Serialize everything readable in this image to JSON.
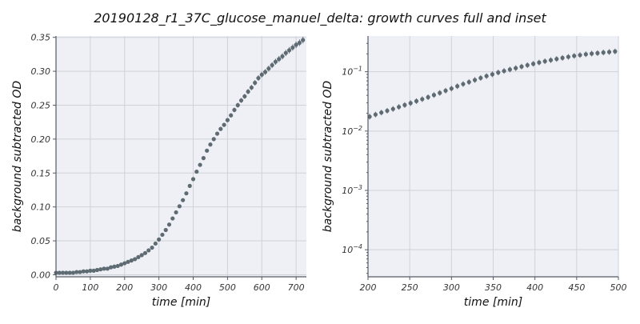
{
  "page": {
    "title": "20190128_r1_37C_glucose_manuel_delta: growth curves full and inset"
  },
  "colors": {
    "marker": "#5f6b73",
    "plot_background": "#eef0f5",
    "grid": "#cfd2d8"
  },
  "chart_data": [
    {
      "type": "scatter",
      "panel": "full",
      "xlabel": "time [min]",
      "ylabel": "background subtracted OD",
      "xlim": [
        0,
        730
      ],
      "ylim": [
        -0.003,
        0.352
      ],
      "yscale": "linear",
      "grid": true,
      "xticks": [
        0,
        100,
        200,
        300,
        400,
        500,
        600,
        700
      ],
      "xtick_labels": [
        "0",
        "100",
        "200",
        "300",
        "400",
        "500",
        "600",
        "700"
      ],
      "yticks": [
        0.0,
        0.05,
        0.1,
        0.15,
        0.2,
        0.25,
        0.3,
        0.35
      ],
      "ytick_labels": [
        "0.00",
        "0.05",
        "0.10",
        "0.15",
        "0.20",
        "0.25",
        "0.30",
        "0.35"
      ],
      "series": [
        {
          "marker": "circle with error bars",
          "points": [
            [
              0,
              0.003
            ],
            [
              10,
              0.003
            ],
            [
              20,
              0.003
            ],
            [
              30,
              0.003
            ],
            [
              40,
              0.003
            ],
            [
              50,
              0.003
            ],
            [
              60,
              0.004
            ],
            [
              70,
              0.004
            ],
            [
              80,
              0.005
            ],
            [
              90,
              0.005
            ],
            [
              100,
              0.006
            ],
            [
              110,
              0.006
            ],
            [
              120,
              0.007
            ],
            [
              130,
              0.008
            ],
            [
              140,
              0.009
            ],
            [
              150,
              0.009
            ],
            [
              160,
              0.011
            ],
            [
              170,
              0.012
            ],
            [
              180,
              0.013
            ],
            [
              190,
              0.015
            ],
            [
              200,
              0.017
            ],
            [
              210,
              0.019
            ],
            [
              220,
              0.021
            ],
            [
              230,
              0.023
            ],
            [
              240,
              0.026
            ],
            [
              250,
              0.029
            ],
            [
              260,
              0.032
            ],
            [
              270,
              0.036
            ],
            [
              280,
              0.04
            ],
            [
              290,
              0.046
            ],
            [
              300,
              0.052
            ],
            [
              310,
              0.059
            ],
            [
              320,
              0.066
            ],
            [
              330,
              0.074
            ],
            [
              340,
              0.083
            ],
            [
              350,
              0.092
            ],
            [
              360,
              0.101
            ],
            [
              370,
              0.11
            ],
            [
              380,
              0.12
            ],
            [
              390,
              0.131
            ],
            [
              400,
              0.141
            ],
            [
              410,
              0.152
            ],
            [
              420,
              0.162
            ],
            [
              430,
              0.172
            ],
            [
              440,
              0.183
            ],
            [
              450,
              0.192
            ],
            [
              460,
              0.2
            ],
            [
              470,
              0.208
            ],
            [
              480,
              0.215
            ],
            [
              490,
              0.221
            ],
            [
              500,
              0.228
            ],
            [
              510,
              0.235
            ],
            [
              520,
              0.243
            ],
            [
              530,
              0.25
            ],
            [
              540,
              0.257
            ],
            [
              550,
              0.263
            ],
            [
              560,
              0.27
            ],
            [
              570,
              0.276
            ],
            [
              580,
              0.283
            ],
            [
              590,
              0.29
            ],
            [
              600,
              0.295
            ],
            [
              610,
              0.299
            ],
            [
              620,
              0.304
            ],
            [
              630,
              0.309
            ],
            [
              640,
              0.314
            ],
            [
              650,
              0.318
            ],
            [
              660,
              0.322
            ],
            [
              670,
              0.327
            ],
            [
              680,
              0.331
            ],
            [
              690,
              0.335
            ],
            [
              700,
              0.339
            ],
            [
              710,
              0.342
            ],
            [
              720,
              0.346
            ]
          ]
        }
      ]
    },
    {
      "type": "scatter",
      "panel": "inset",
      "xlabel": "time [min]",
      "ylabel": "background subtracted OD",
      "xlim": [
        200,
        500
      ],
      "ylim": [
        3.5e-05,
        0.4
      ],
      "yscale": "log",
      "grid": true,
      "xticks": [
        200,
        250,
        300,
        350,
        400,
        450,
        500
      ],
      "xtick_labels": [
        "200",
        "250",
        "300",
        "350",
        "400",
        "450",
        "500"
      ],
      "yticks": [
        0.0001,
        0.001,
        0.01,
        0.1
      ],
      "ytick_labels": [
        [
          "10",
          "−4"
        ],
        [
          "10",
          "−3"
        ],
        [
          "10",
          "−2"
        ],
        [
          "10",
          "−1"
        ]
      ],
      "series": [
        {
          "marker": "circle with error bars",
          "points": [
            [
              202,
              0.0175
            ],
            [
              209,
              0.019
            ],
            [
              216,
              0.0205
            ],
            [
              223,
              0.022
            ],
            [
              230,
              0.0236
            ],
            [
              237,
              0.0255
            ],
            [
              244,
              0.0275
            ],
            [
              251,
              0.0296
            ],
            [
              258,
              0.032
            ],
            [
              265,
              0.0345
            ],
            [
              272,
              0.0372
            ],
            [
              279,
              0.0405
            ],
            [
              286,
              0.044
            ],
            [
              293,
              0.048
            ],
            [
              300,
              0.052
            ],
            [
              307,
              0.057
            ],
            [
              314,
              0.062
            ],
            [
              321,
              0.067
            ],
            [
              328,
              0.0725
            ],
            [
              335,
              0.0785
            ],
            [
              342,
              0.0845
            ],
            [
              349,
              0.0905
            ],
            [
              356,
              0.097
            ],
            [
              363,
              0.103
            ],
            [
              370,
              0.109
            ],
            [
              377,
              0.115
            ],
            [
              384,
              0.122
            ],
            [
              391,
              0.129
            ],
            [
              398,
              0.136
            ],
            [
              405,
              0.143
            ],
            [
              412,
              0.15
            ],
            [
              419,
              0.157
            ],
            [
              426,
              0.164
            ],
            [
              433,
              0.171
            ],
            [
              440,
              0.178
            ],
            [
              447,
              0.185
            ],
            [
              454,
              0.191
            ],
            [
              461,
              0.197
            ],
            [
              468,
              0.202
            ],
            [
              475,
              0.206
            ],
            [
              482,
              0.211
            ],
            [
              489,
              0.215
            ],
            [
              496,
              0.22
            ]
          ]
        }
      ]
    }
  ]
}
